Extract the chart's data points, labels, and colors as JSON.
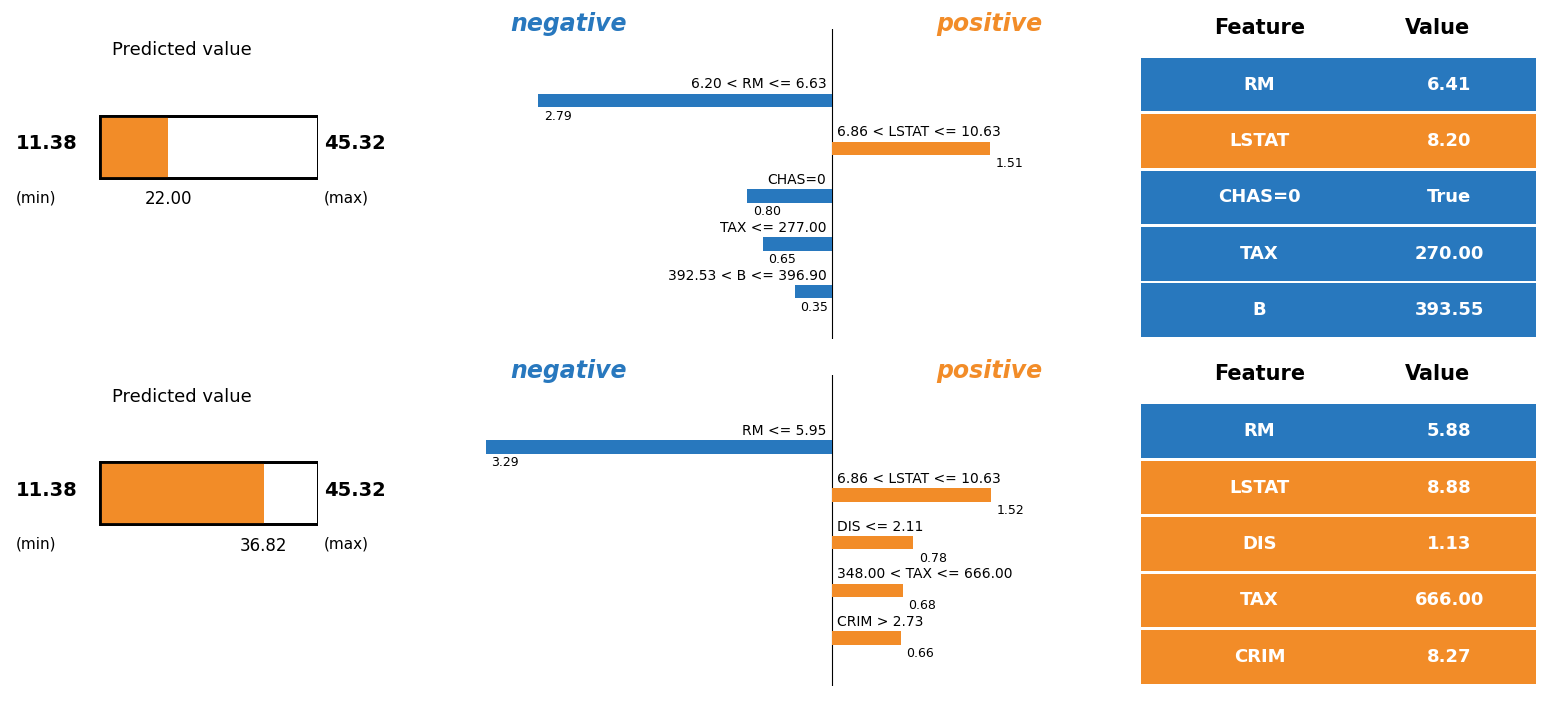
{
  "orange_color": "#F28C28",
  "blue_color": "#2878BE",
  "bg_color": "#FFFFFF",
  "min_val": 11.38,
  "max_val": 45.32,
  "row1": {
    "predicted": 22.0,
    "neg_label": "negative",
    "pos_label": "positive",
    "bars": [
      {
        "label": "6.20 < RM <= 6.63",
        "value": 2.79,
        "color": "blue",
        "direction": "neg"
      },
      {
        "label": "6.86 < LSTAT <= 10.63",
        "value": 1.51,
        "color": "orange",
        "direction": "pos"
      },
      {
        "label": "CHAS=0",
        "value": 0.8,
        "color": "blue",
        "direction": "neg"
      },
      {
        "label": "TAX <= 277.00",
        "value": 0.65,
        "color": "blue",
        "direction": "neg"
      },
      {
        "label": "392.53 < B <= 396.90",
        "value": 0.35,
        "color": "blue",
        "direction": "neg"
      }
    ],
    "table_features": [
      "RM",
      "LSTAT",
      "CHAS=0",
      "TAX",
      "B"
    ],
    "table_values": [
      "6.41",
      "8.20",
      "True",
      "270.00",
      "393.55"
    ],
    "table_colors": [
      "blue",
      "orange",
      "blue",
      "blue",
      "blue"
    ]
  },
  "row2": {
    "predicted": 36.82,
    "neg_label": "negative",
    "pos_label": "positive",
    "bars": [
      {
        "label": "RM <= 5.95",
        "value": 3.29,
        "color": "blue",
        "direction": "neg"
      },
      {
        "label": "6.86 < LSTAT <= 10.63",
        "value": 1.52,
        "color": "orange",
        "direction": "pos"
      },
      {
        "label": "DIS <= 2.11",
        "value": 0.78,
        "color": "orange",
        "direction": "pos"
      },
      {
        "label": "348.00 < TAX <= 666.00",
        "value": 0.68,
        "color": "orange",
        "direction": "pos"
      },
      {
        "label": "CRIM > 2.73",
        "value": 0.66,
        "color": "orange",
        "direction": "pos"
      }
    ],
    "table_features": [
      "RM",
      "LSTAT",
      "DIS",
      "TAX",
      "CRIM"
    ],
    "table_values": [
      "5.88",
      "8.88",
      "1.13",
      "666.00",
      "8.27"
    ],
    "table_colors": [
      "blue",
      "orange",
      "orange",
      "orange",
      "orange"
    ]
  }
}
